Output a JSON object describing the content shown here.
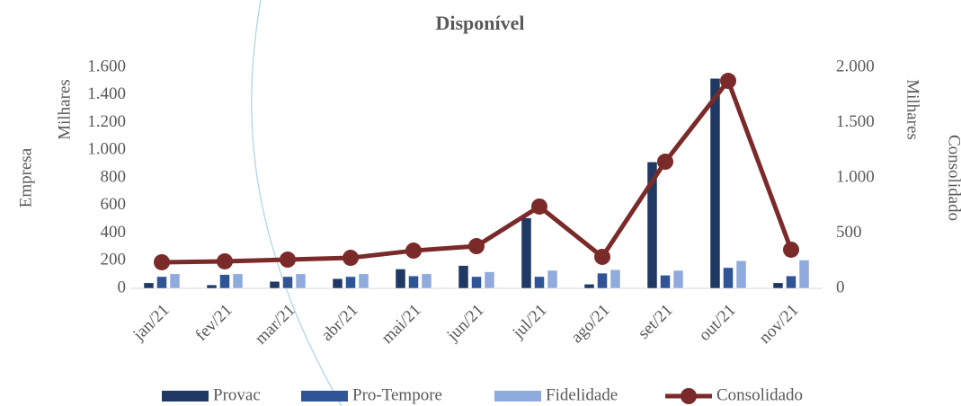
{
  "chart_data": {
    "type": "bar",
    "title": "Disponível",
    "y_label": "Empresa",
    "y_unit": "Milhares",
    "y2_label": "Consolidado",
    "y2_unit": "Milhares",
    "categories": [
      "jan/21",
      "fev/21",
      "mar/21",
      "abr/21",
      "mai/21",
      "jun/21",
      "jul/21",
      "ago/21",
      "set/21",
      "out/21",
      "nov/21"
    ],
    "series": [
      {
        "name": "Provac",
        "color": "#1f3864",
        "values": [
          40,
          25,
          50,
          70,
          140,
          165,
          510,
          30,
          915,
          1520,
          40
        ]
      },
      {
        "name": "Pro-Tempore",
        "color": "#2f5597",
        "values": [
          85,
          100,
          85,
          85,
          90,
          85,
          85,
          110,
          95,
          150,
          90
        ]
      },
      {
        "name": "Fidelidade",
        "color": "#8faadc",
        "values": [
          105,
          105,
          105,
          105,
          105,
          120,
          130,
          135,
          130,
          200,
          205
        ]
      },
      {
        "name": "Consolidado",
        "color": "#7b2a2a",
        "type": "line",
        "axis": "y2",
        "values": [
          236,
          244,
          260,
          276,
          341,
          382,
          740,
          285,
          1146,
          1878,
          350
        ]
      }
    ],
    "ylim": [
      0,
      1600
    ],
    "yticks": [
      0,
      200,
      400,
      600,
      800,
      {
        "value": 1000,
        "label": "1.000"
      },
      {
        "value": 1200,
        "label": "1.200"
      },
      {
        "value": 1400,
        "label": "1.400"
      },
      {
        "value": 1600,
        "label": "1.600"
      }
    ],
    "y2lim": [
      0,
      2000
    ],
    "y2ticks": [
      0,
      500,
      {
        "value": 1000,
        "label": "1.000"
      },
      {
        "value": 1500,
        "label": "1.500"
      },
      {
        "value": 2000,
        "label": "2.000"
      }
    ],
    "legend": "bottom"
  }
}
